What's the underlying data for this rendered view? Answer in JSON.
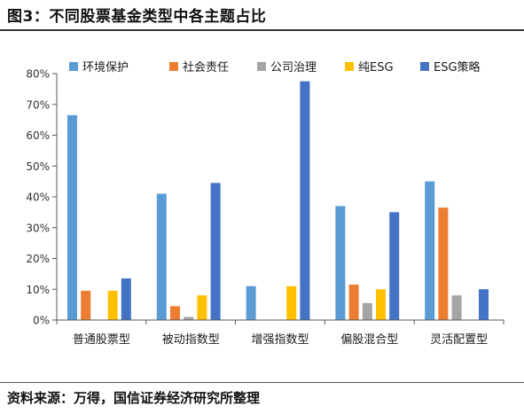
{
  "header": {
    "title": "图3：不同股票基金类型中各主题占比"
  },
  "footer": {
    "source": "资料来源：万得，国信证券经济研究所整理"
  },
  "chart_data": {
    "type": "bar",
    "categories": [
      "普通股票型",
      "被动指数型",
      "增强指数型",
      "偏股混合型",
      "灵活配置型"
    ],
    "series": [
      {
        "name": "环境保护",
        "color": "#5b9bd5",
        "values": [
          66.5,
          41,
          11,
          37,
          45
        ]
      },
      {
        "name": "社会责任",
        "color": "#ed7d31",
        "values": [
          9.5,
          4.5,
          0,
          11.5,
          36.5
        ]
      },
      {
        "name": "公司治理",
        "color": "#a5a5a5",
        "values": [
          0,
          1,
          0,
          5.5,
          8
        ]
      },
      {
        "name": "纯ESG",
        "color": "#ffc000",
        "values": [
          9.5,
          8,
          11,
          10,
          0
        ]
      },
      {
        "name": "ESG策略",
        "color": "#4472c4",
        "values": [
          13.5,
          44.5,
          77.5,
          35,
          10
        ]
      }
    ],
    "ylim": [
      0,
      80
    ],
    "yticks": [
      "0%",
      "10%",
      "20%",
      "30%",
      "40%",
      "50%",
      "60%",
      "70%",
      "80%"
    ],
    "ytick_values": [
      0,
      10,
      20,
      30,
      40,
      50,
      60,
      70,
      80
    ],
    "legend_position": "top",
    "grid": false
  }
}
